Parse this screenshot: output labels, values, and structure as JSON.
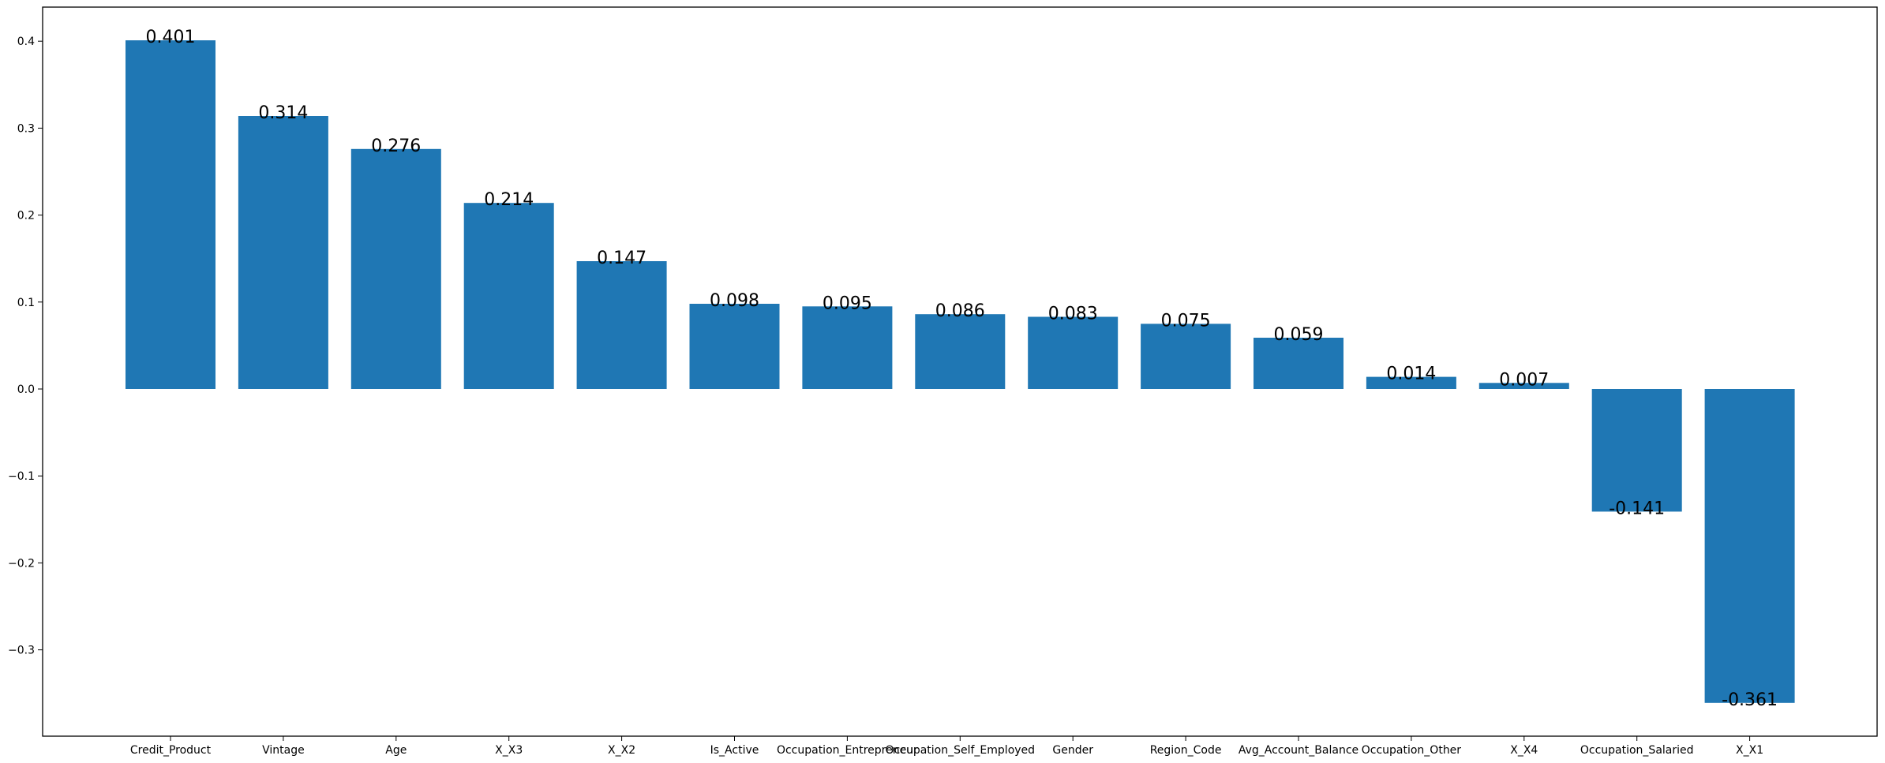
{
  "chart_data": {
    "type": "bar",
    "title": "",
    "xlabel": "",
    "ylabel": "",
    "categories": [
      "Credit_Product",
      "Vintage",
      "Age",
      "X_X3",
      "X_X2",
      "Is_Active",
      "Occupation_Entrepreneur",
      "Occupation_Self_Employed",
      "Gender",
      "Region_Code",
      "Avg_Account_Balance",
      "Occupation_Other",
      "X_X4",
      "Occupation_Salaried",
      "X_X1"
    ],
    "values": [
      0.401,
      0.314,
      0.276,
      0.214,
      0.147,
      0.098,
      0.095,
      0.086,
      0.083,
      0.075,
      0.059,
      0.014,
      0.007,
      -0.141,
      -0.361
    ],
    "value_labels": [
      "0.401",
      "0.314",
      "0.276",
      "0.214",
      "0.147",
      "0.098",
      "0.095",
      "0.086",
      "0.083",
      "0.075",
      "0.059",
      "0.014",
      "0.007",
      "-0.141",
      "-0.361"
    ],
    "ylim": [
      -0.4,
      0.44
    ],
    "yticks": [
      -0.3,
      -0.2,
      -0.1,
      0.0,
      0.1,
      0.2,
      0.3,
      0.4
    ],
    "ytick_labels": [
      "−0.3",
      "−0.2",
      "−0.1",
      "0.0",
      "0.1",
      "0.2",
      "0.3",
      "0.4"
    ],
    "grid": false,
    "bar_color": "#1f77b4"
  }
}
